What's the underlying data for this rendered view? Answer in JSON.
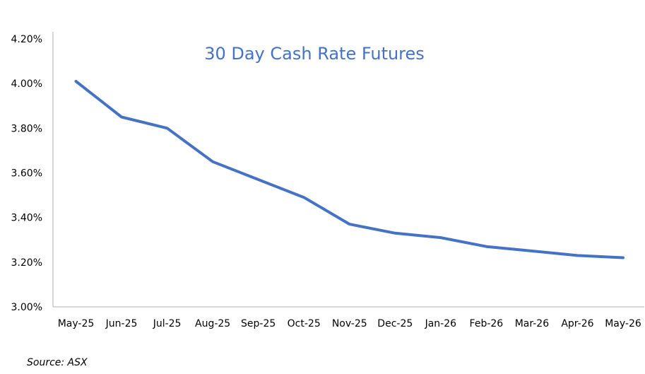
{
  "chart_data": {
    "type": "line",
    "title": "30 Day Cash Rate Futures",
    "categories": [
      "May-25",
      "Jun-25",
      "Jul-25",
      "Aug-25",
      "Sep-25",
      "Oct-25",
      "Nov-25",
      "Dec-25",
      "Jan-26",
      "Feb-26",
      "Mar-26",
      "Apr-26",
      "May-26"
    ],
    "series": [
      {
        "values": [
          4.01,
          3.85,
          3.8,
          3.65,
          3.57,
          3.49,
          3.37,
          3.33,
          3.31,
          3.27,
          3.25,
          3.23,
          3.22
        ]
      }
    ],
    "ylim": [
      3.0,
      4.2
    ],
    "yticks": [
      "3.00%",
      "3.20%",
      "3.40%",
      "3.60%",
      "3.80%",
      "4.00%",
      "4.20%"
    ],
    "ytick_values": [
      3.0,
      3.2,
      3.4,
      3.6,
      3.8,
      4.0,
      4.2
    ],
    "grid": false,
    "legend": "none",
    "line_color": "#4472C4",
    "title_color": "#4472C4"
  },
  "footer": {
    "source": "Source: ASX"
  }
}
